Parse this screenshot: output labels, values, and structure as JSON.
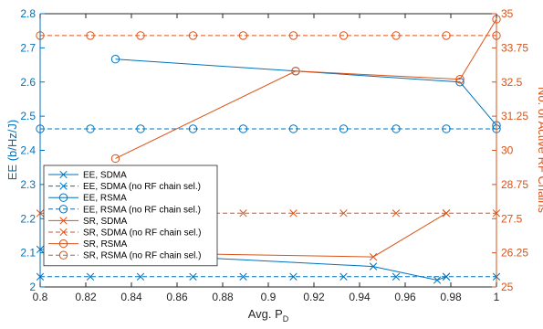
{
  "chart_data": {
    "type": "line",
    "xlabel": "Avg. P",
    "xlabel_sub": "D",
    "ylabel_left": "EE (b/Hz/J)",
    "ylabel_right": "No. of Active RF Chains",
    "xlim": [
      0.8,
      1.0
    ],
    "xticks": [
      "0.8",
      "0.82",
      "0.84",
      "0.86",
      "0.88",
      "0.9",
      "0.92",
      "0.94",
      "0.96",
      "0.98",
      "1"
    ],
    "ylim_left": [
      2.0,
      2.8
    ],
    "yticks_left": [
      "2",
      "2.1",
      "2.2",
      "2.3",
      "2.4",
      "2.5",
      "2.6",
      "2.7",
      "2.8"
    ],
    "ylim_right": [
      25,
      35
    ],
    "yticks_right": [
      "25",
      "26.25",
      "27.5",
      "28.75",
      "30",
      "31.25",
      "32.5",
      "33.75",
      "35"
    ],
    "grid": false,
    "legend_position": "left",
    "colors": {
      "left": "#0072BD",
      "right": "#D95319"
    },
    "series": [
      {
        "name": "EE, SDMA",
        "axis": "left",
        "marker": "x",
        "dashed": false,
        "x": [
          0.8,
          0.946,
          0.974,
          0.978
        ],
        "y": [
          2.11,
          2.06,
          2.02,
          2.03
        ]
      },
      {
        "name": "EE, SDMA (no RF chain sel.)",
        "axis": "left",
        "marker": "x",
        "dashed": true,
        "x": [
          0.8,
          0.822,
          0.844,
          0.867,
          0.889,
          0.911,
          0.933,
          0.956,
          0.978,
          1.0
        ],
        "y": [
          2.03,
          2.03,
          2.03,
          2.03,
          2.03,
          2.03,
          2.03,
          2.03,
          2.03,
          2.03
        ]
      },
      {
        "name": "EE, RSMA",
        "axis": "left",
        "marker": "o",
        "dashed": false,
        "x": [
          0.833,
          0.912,
          0.984,
          1.0
        ],
        "y": [
          2.667,
          2.632,
          2.6,
          2.473
        ]
      },
      {
        "name": "EE, RSMA (no RF chain sel.)",
        "axis": "left",
        "marker": "o",
        "dashed": true,
        "x": [
          0.8,
          0.822,
          0.844,
          0.867,
          0.889,
          0.911,
          0.933,
          0.956,
          0.978,
          1.0
        ],
        "y": [
          2.463,
          2.463,
          2.463,
          2.463,
          2.463,
          2.463,
          2.463,
          2.463,
          2.463,
          2.463
        ]
      },
      {
        "name": "SR, SDMA",
        "axis": "right",
        "marker": "x",
        "dashed": false,
        "x": [
          0.803,
          0.946,
          0.978
        ],
        "y": [
          26.3,
          26.1,
          27.7
        ]
      },
      {
        "name": "SR, SDMA (no RF chain sel.)",
        "axis": "right",
        "marker": "x",
        "dashed": true,
        "x": [
          0.8,
          0.822,
          0.844,
          0.867,
          0.889,
          0.911,
          0.933,
          0.956,
          0.978,
          1.0
        ],
        "y": [
          27.7,
          27.7,
          27.7,
          27.7,
          27.7,
          27.7,
          27.7,
          27.7,
          27.7,
          27.7
        ]
      },
      {
        "name": "SR, RSMA",
        "axis": "right",
        "marker": "o",
        "dashed": false,
        "x": [
          0.833,
          0.912,
          0.984,
          1.0
        ],
        "y": [
          29.7,
          32.9,
          32.6,
          34.8
        ]
      },
      {
        "name": "SR, RSMA (no RF chain sel.)",
        "axis": "right",
        "marker": "o",
        "dashed": true,
        "x": [
          0.8,
          0.822,
          0.844,
          0.867,
          0.889,
          0.911,
          0.933,
          0.956,
          0.978,
          1.0
        ],
        "y": [
          34.2,
          34.2,
          34.2,
          34.2,
          34.2,
          34.2,
          34.2,
          34.2,
          34.2,
          34.2
        ]
      }
    ]
  }
}
